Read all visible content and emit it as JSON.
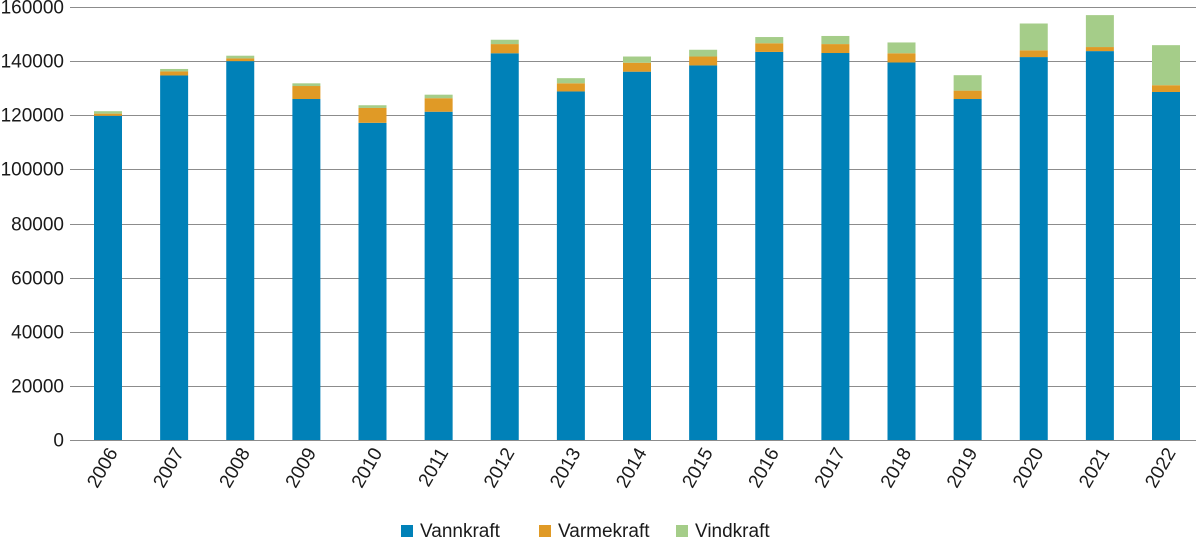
{
  "chart_data": {
    "type": "bar",
    "stacked": true,
    "categories": [
      "2006",
      "2007",
      "2008",
      "2009",
      "2010",
      "2011",
      "2012",
      "2013",
      "2014",
      "2015",
      "2016",
      "2017",
      "2018",
      "2019",
      "2020",
      "2021",
      "2022"
    ],
    "series": [
      {
        "name": "Vannkraft",
        "color": "#0081b8",
        "values": [
          119800,
          134700,
          140000,
          126000,
          117200,
          121300,
          142900,
          128800,
          136100,
          138400,
          143400,
          143000,
          139500,
          126000,
          141500,
          143700,
          128600
        ]
      },
      {
        "name": "Varmekraft",
        "color": "#e09a26",
        "values": [
          800,
          1500,
          1000,
          4800,
          5500,
          5000,
          3400,
          3000,
          3300,
          3300,
          3200,
          3300,
          3400,
          3100,
          2500,
          1500,
          2500
        ]
      },
      {
        "name": "Vindkraft",
        "color": "#a5cd89",
        "values": [
          900,
          900,
          1000,
          1000,
          1000,
          1300,
          1600,
          1900,
          2300,
          2500,
          2300,
          3000,
          4000,
          5700,
          9900,
          11800,
          14800
        ]
      }
    ],
    "yticks": [
      "0",
      "20000",
      "40000",
      "60000",
      "80000",
      "100000",
      "120000",
      "140000",
      "160000"
    ],
    "ylim": [
      0,
      160000
    ],
    "xlabel": "",
    "ylabel": "",
    "grid": true,
    "legend_position": "bottom-center"
  }
}
